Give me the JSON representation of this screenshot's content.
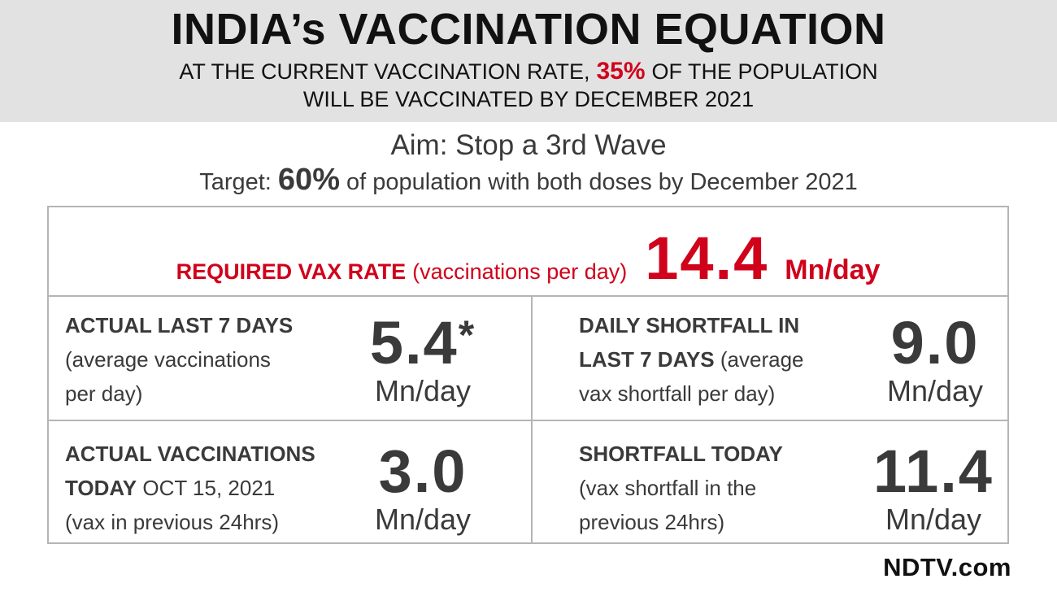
{
  "header": {
    "title": "INDIA’s VACCINATION EQUATION",
    "line1_pre": "AT THE CURRENT VACCINATION RATE,",
    "line1_pct": "35%",
    "line1_post": "OF THE POPULATION",
    "line2": "WILL BE VACCINATED BY DECEMBER 2021"
  },
  "aim": "Aim: Stop a 3rd Wave",
  "target": {
    "pre": "Target:",
    "pct": "60%",
    "post": "of population with both doses by December 2021"
  },
  "required": {
    "label": "REQUIRED VAX RATE",
    "note": "(vaccinations per day)",
    "value": "14.4",
    "unit": "Mn/day"
  },
  "cells": {
    "actual7": {
      "label": "ACTUAL LAST 7 DAYS",
      "note1": "(average vaccinations",
      "note2": "per day)",
      "value": "5.4",
      "star": "*",
      "unit": "Mn/day"
    },
    "shortfall7": {
      "label1": "DAILY SHORTFALL IN",
      "label2": "LAST 7 DAYS",
      "note_inline": "(average",
      "note2": "vax shortfall per day)",
      "value": "9.0",
      "unit": "Mn/day"
    },
    "today": {
      "label1": "ACTUAL VACCINATIONS",
      "label2": "TODAY",
      "date": "OCT 15, 2021",
      "note": "(vax in previous 24hrs)",
      "value": "3.0",
      "unit": "Mn/day"
    },
    "shortfall_today": {
      "label": "SHORTFALL TODAY",
      "note1": "(vax shortfall in the",
      "note2": "previous 24hrs)",
      "value": "11.4",
      "unit": "Mn/day"
    }
  },
  "logo": "NDTV.com",
  "colors": {
    "accent": "#d0021b",
    "header_bg": "#e2e2e2",
    "text": "#3a3a3a"
  }
}
